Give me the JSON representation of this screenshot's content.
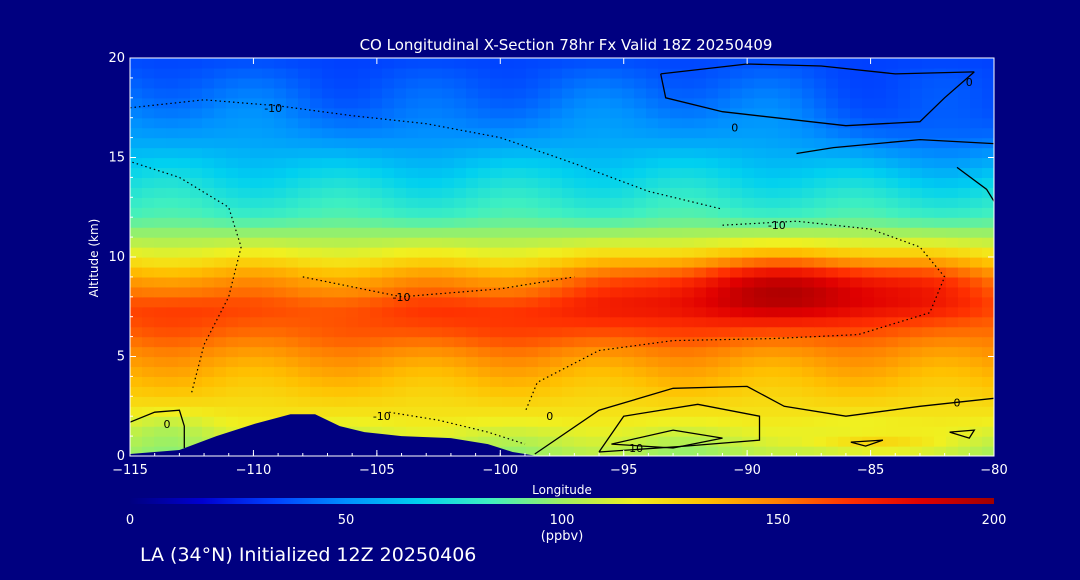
{
  "chart_data": {
    "type": "heatmap",
    "title": "CO Longitudinal X-Section 78hr  Fx Valid 18Z 20250409",
    "xlabel": "Longitude",
    "ylabel": "Altitude (km)",
    "xlim": [
      -115,
      -80
    ],
    "ylim": [
      0,
      20
    ],
    "x_ticks": [
      -115,
      -110,
      -105,
      -100,
      -95,
      -90,
      -85,
      -80
    ],
    "x_tick_labels": [
      "−115",
      "−110",
      "−105",
      "−100",
      "−95",
      "−90",
      "−85",
      "−80"
    ],
    "y_ticks": [
      0,
      5,
      10,
      15,
      20
    ],
    "y_tick_labels": [
      "0",
      "5",
      "10",
      "15",
      "20"
    ],
    "colorbar": {
      "min": 0,
      "max": 200,
      "ticks": [
        0,
        50,
        100,
        150,
        200
      ],
      "tick_labels": [
        "0",
        "50",
        "100",
        "150",
        "200"
      ],
      "unit": "(ppbv)",
      "colors": [
        "#000080",
        "#0000d0",
        "#0040ff",
        "#0090ff",
        "#00d0f0",
        "#40f0c0",
        "#a0f060",
        "#f0f020",
        "#ffc000",
        "#ff8000",
        "#ff3000",
        "#e00000",
        "#a00000"
      ]
    },
    "field": {
      "base": [
        [
          0.0,
          100
        ],
        [
          1.0,
          110
        ],
        [
          2.0,
          120
        ],
        [
          4.0,
          135
        ],
        [
          6.0,
          150
        ],
        [
          7.5,
          155
        ],
        [
          9.0,
          140
        ],
        [
          10.5,
          110
        ],
        [
          12.0,
          85
        ],
        [
          14.0,
          70
        ],
        [
          16.0,
          55
        ],
        [
          18.0,
          45
        ],
        [
          20.0,
          35
        ]
      ],
      "plumes": [
        {
          "lon": -88.0,
          "alt": 8.5,
          "amp": 45,
          "sx": 7.0,
          "sy": 1.8
        },
        {
          "lon": -100.0,
          "alt": 6.8,
          "amp": 12,
          "sx": 9.0,
          "sy": 1.6
        },
        {
          "lon": -113.5,
          "alt": 7.2,
          "amp": 10,
          "sx": 3.0,
          "sy": 1.5
        },
        {
          "lon": -82.0,
          "alt": 16.5,
          "amp": -14,
          "sx": 5.0,
          "sy": 2.5
        },
        {
          "lon": -104.0,
          "alt": 17.0,
          "amp": -6,
          "sx": 5.0,
          "sy": 2.5
        },
        {
          "lon": -85.0,
          "alt": 0.6,
          "amp": 22,
          "sx": 2.5,
          "sy": 0.6
        },
        {
          "lon": -113.5,
          "alt": 1.5,
          "amp": -8,
          "sx": 2.0,
          "sy": 1.0
        }
      ]
    },
    "terrain": [
      [
        -115.0,
        0.1
      ],
      [
        -113.0,
        0.3
      ],
      [
        -111.5,
        1.0
      ],
      [
        -110.0,
        1.6
      ],
      [
        -108.5,
        2.1
      ],
      [
        -107.5,
        2.1
      ],
      [
        -106.5,
        1.5
      ],
      [
        -105.5,
        1.2
      ],
      [
        -104.0,
        1.0
      ],
      [
        -102.0,
        0.9
      ],
      [
        -100.5,
        0.6
      ],
      [
        -99.5,
        0.2
      ],
      [
        -98.5,
        0.0
      ],
      [
        -80.0,
        0.0
      ]
    ],
    "contour_labels": [
      {
        "text": "-10",
        "lon": -109.2,
        "alt": 17.5
      },
      {
        "text": "0",
        "lon": -90.5,
        "alt": 16.5
      },
      {
        "text": "0",
        "lon": -81.0,
        "alt": 18.8
      },
      {
        "text": "-10",
        "lon": -88.8,
        "alt": 11.6
      },
      {
        "text": "-10",
        "lon": -104.0,
        "alt": 8.0
      },
      {
        "text": "-10",
        "lon": -104.8,
        "alt": 2.0
      },
      {
        "text": "0",
        "lon": -98.0,
        "alt": 2.0
      },
      {
        "text": "0",
        "lon": -113.5,
        "alt": 1.6
      },
      {
        "text": "0",
        "lon": -81.5,
        "alt": 2.7
      },
      {
        "text": "10",
        "lon": -94.5,
        "alt": 0.4
      }
    ],
    "contour_lines": [
      {
        "style": "solid",
        "points": [
          [
            -93.5,
            19.2
          ],
          [
            -93.3,
            18.0
          ],
          [
            -91.0,
            17.3
          ],
          [
            -86.0,
            16.6
          ],
          [
            -83.0,
            16.8
          ],
          [
            -82.0,
            18.0
          ],
          [
            -80.8,
            19.3
          ]
        ]
      },
      {
        "style": "solid",
        "points": [
          [
            -93.5,
            19.2
          ],
          [
            -90.0,
            19.7
          ],
          [
            -87.0,
            19.6
          ],
          [
            -84.0,
            19.2
          ],
          [
            -80.8,
            19.3
          ]
        ]
      },
      {
        "style": "solid",
        "points": [
          [
            -88.0,
            15.2
          ],
          [
            -86.5,
            15.5
          ],
          [
            -83.0,
            15.9
          ],
          [
            -80.0,
            15.7
          ]
        ]
      },
      {
        "style": "solid",
        "points": [
          [
            -81.5,
            14.5
          ],
          [
            -80.3,
            13.4
          ],
          [
            -80.0,
            12.8
          ]
        ]
      },
      {
        "style": "dotted",
        "points": [
          [
            -115.0,
            17.5
          ],
          [
            -112.0,
            17.9
          ],
          [
            -109.0,
            17.6
          ],
          [
            -106.0,
            17.1
          ],
          [
            -103.0,
            16.7
          ],
          [
            -100.0,
            16.0
          ],
          [
            -97.0,
            14.7
          ],
          [
            -94.0,
            13.3
          ],
          [
            -91.0,
            12.4
          ]
        ]
      },
      {
        "style": "dotted",
        "points": [
          [
            -91.0,
            11.6
          ],
          [
            -88.0,
            11.8
          ],
          [
            -85.0,
            11.4
          ],
          [
            -83.0,
            10.5
          ],
          [
            -82.0,
            9.0
          ],
          [
            -82.6,
            7.2
          ],
          [
            -85.5,
            6.1
          ],
          [
            -89.0,
            5.9
          ],
          [
            -93.0,
            5.8
          ],
          [
            -96.0,
            5.3
          ],
          [
            -98.5,
            3.7
          ],
          [
            -99.0,
            2.2
          ]
        ]
      },
      {
        "style": "dotted",
        "points": [
          [
            -112.5,
            3.2
          ],
          [
            -112.0,
            5.6
          ],
          [
            -111.0,
            8.0
          ],
          [
            -110.5,
            10.5
          ],
          [
            -111.0,
            12.5
          ],
          [
            -113.0,
            14.0
          ],
          [
            -115.0,
            14.8
          ]
        ]
      },
      {
        "style": "dotted",
        "points": [
          [
            -104.5,
            2.2
          ],
          [
            -102.5,
            1.8
          ],
          [
            -100.5,
            1.2
          ],
          [
            -99.0,
            0.6
          ]
        ]
      },
      {
        "style": "dotted",
        "points": [
          [
            -108.0,
            9.0
          ],
          [
            -104.0,
            8.0
          ],
          [
            -100.0,
            8.4
          ],
          [
            -97.0,
            9.0
          ]
        ]
      },
      {
        "style": "solid",
        "points": [
          [
            -115.0,
            1.7
          ],
          [
            -114.0,
            2.2
          ],
          [
            -113.0,
            2.3
          ],
          [
            -112.8,
            1.5
          ],
          [
            -112.8,
            0.4
          ]
        ]
      },
      {
        "style": "solid",
        "points": [
          [
            -98.6,
            0.1
          ],
          [
            -96.0,
            2.3
          ],
          [
            -93.0,
            3.4
          ],
          [
            -90.0,
            3.5
          ],
          [
            -88.5,
            2.5
          ],
          [
            -86.0,
            2.0
          ],
          [
            -83.0,
            2.5
          ],
          [
            -80.0,
            2.9
          ]
        ]
      },
      {
        "style": "solid",
        "points": [
          [
            -96.0,
            0.2
          ],
          [
            -95.0,
            2.0
          ],
          [
            -92.0,
            2.6
          ],
          [
            -89.5,
            2.0
          ],
          [
            -89.5,
            0.8
          ],
          [
            -92.5,
            0.5
          ],
          [
            -96.0,
            0.2
          ]
        ]
      },
      {
        "style": "solid",
        "points": [
          [
            -95.5,
            0.6
          ],
          [
            -93.0,
            1.3
          ],
          [
            -91.0,
            0.9
          ],
          [
            -93.0,
            0.4
          ],
          [
            -95.5,
            0.6
          ]
        ]
      },
      {
        "style": "solid",
        "points": [
          [
            -85.8,
            0.7
          ],
          [
            -84.5,
            0.8
          ],
          [
            -85.2,
            0.5
          ],
          [
            -85.8,
            0.7
          ]
        ]
      },
      {
        "style": "solid",
        "points": [
          [
            -81.8,
            1.2
          ],
          [
            -80.8,
            1.3
          ],
          [
            -81.0,
            0.9
          ],
          [
            -81.8,
            1.2
          ]
        ]
      }
    ]
  },
  "footer": {
    "text": "LA (34°N) Initialized 12Z 20250406"
  }
}
